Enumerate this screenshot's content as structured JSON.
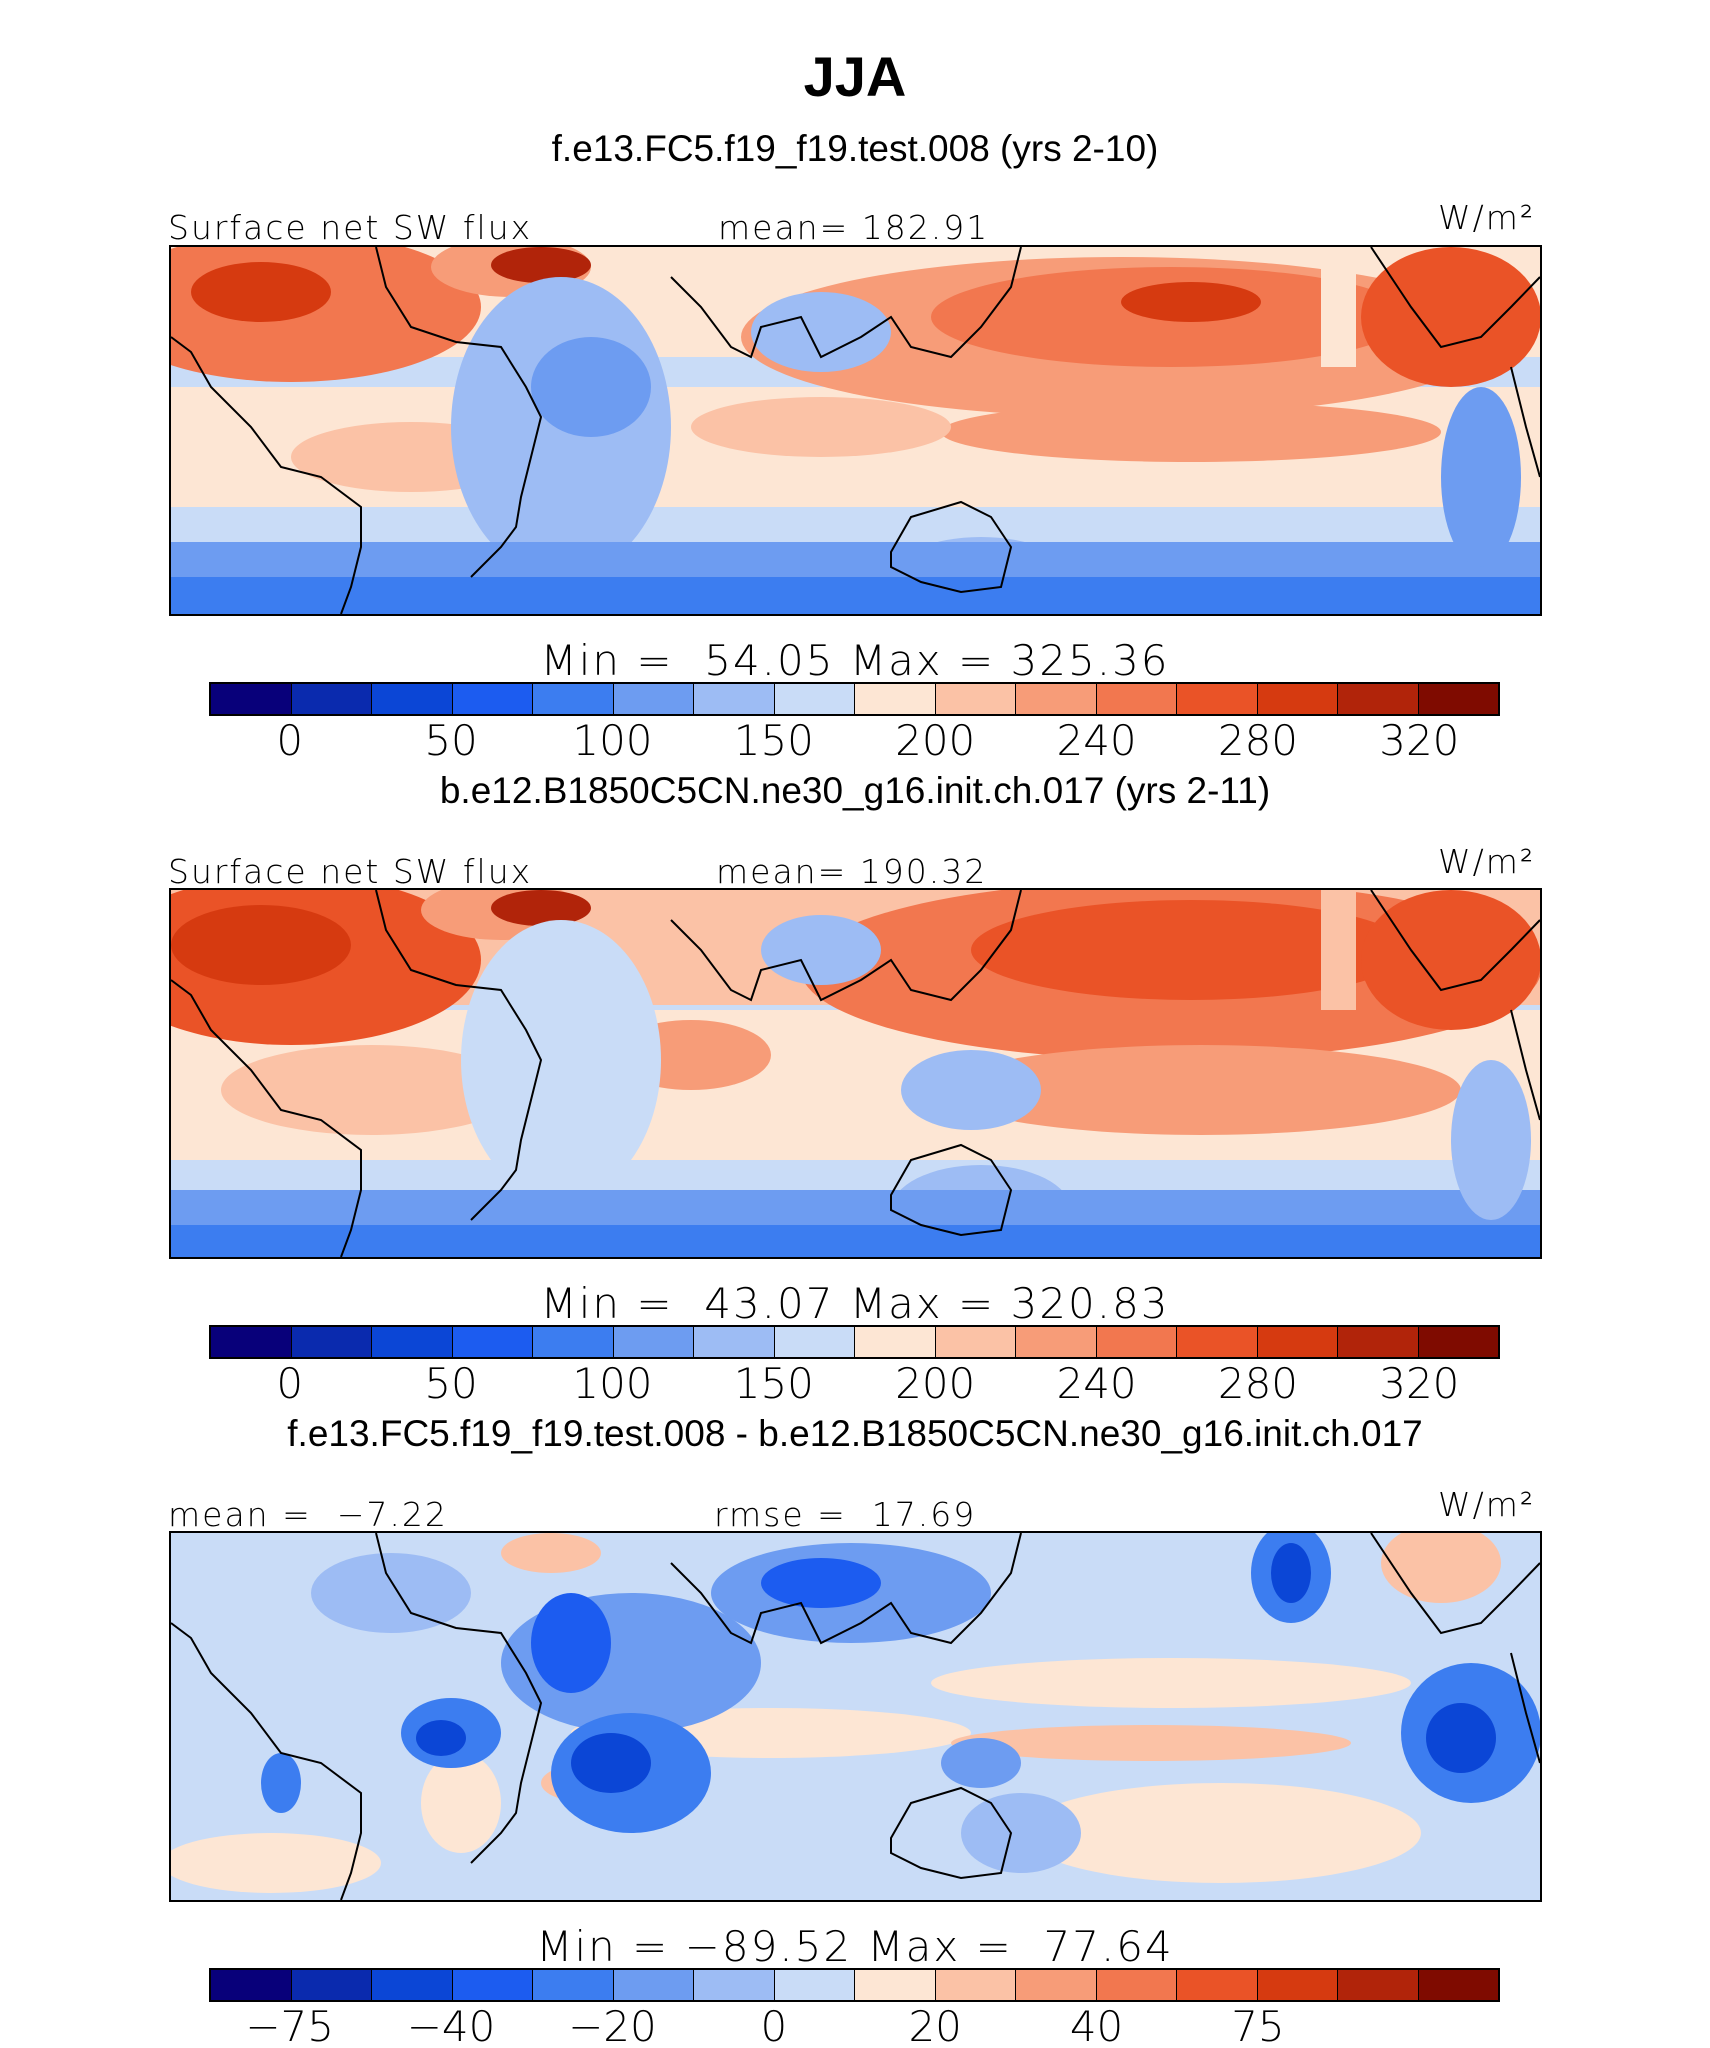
{
  "title": "JJA",
  "panels": [
    {
      "subtitle": "f.e13.FC5.f19_f19.test.008 (yrs 2-10)",
      "left_label": "Surface net SW flux",
      "center_label": "mean= 182.91",
      "units": "W/m²",
      "minmax": "Min =  54.05 Max = 325.36",
      "colorbar": {
        "colors": [
          "#08007a",
          "#0a2aae",
          "#0b46d6",
          "#1c5cf0",
          "#3c7df0",
          "#6d9cf1",
          "#9dbcf4",
          "#c9dcf7",
          "#fde6d4",
          "#fbc2a6",
          "#f79c78",
          "#f2774f",
          "#ea5327",
          "#d63a10",
          "#b1240a",
          "#7f0b00"
        ],
        "ticks": [
          "0",
          "50",
          "100",
          "150",
          "200",
          "240",
          "280",
          "320"
        ]
      }
    },
    {
      "subtitle": "b.e12.B1850C5CN.ne30_g16.init.ch.017 (yrs 2-11)",
      "left_label": "Surface net SW flux",
      "center_label": "mean= 190.32",
      "units": "W/m²",
      "minmax": "Min =  43.07 Max = 320.83",
      "colorbar": {
        "colors": [
          "#08007a",
          "#0a2aae",
          "#0b46d6",
          "#1c5cf0",
          "#3c7df0",
          "#6d9cf1",
          "#9dbcf4",
          "#c9dcf7",
          "#fde6d4",
          "#fbc2a6",
          "#f79c78",
          "#f2774f",
          "#ea5327",
          "#d63a10",
          "#b1240a",
          "#7f0b00"
        ],
        "ticks": [
          "0",
          "50",
          "100",
          "150",
          "200",
          "240",
          "280",
          "320"
        ]
      }
    },
    {
      "subtitle": "f.e13.FC5.f19_f19.test.008 - b.e12.B1850C5CN.ne30_g16.init.ch.017",
      "left_label": "mean =  −7.22",
      "center_label": "rmse =  17.69",
      "units": "W/m²",
      "minmax": "Min = −89.52 Max =  77.64",
      "colorbar": {
        "colors": [
          "#08007a",
          "#0a2aae",
          "#0b46d6",
          "#1c5cf0",
          "#3c7df0",
          "#6d9cf1",
          "#9dbcf4",
          "#c9dcf7",
          "#fde6d4",
          "#fbc2a6",
          "#f79c78",
          "#f2774f",
          "#ea5327",
          "#d63a10",
          "#b1240a",
          "#7f0b00"
        ],
        "ticks": [
          "−75",
          "−40",
          "−20",
          "0",
          "20",
          "40",
          "75"
        ]
      }
    }
  ]
}
